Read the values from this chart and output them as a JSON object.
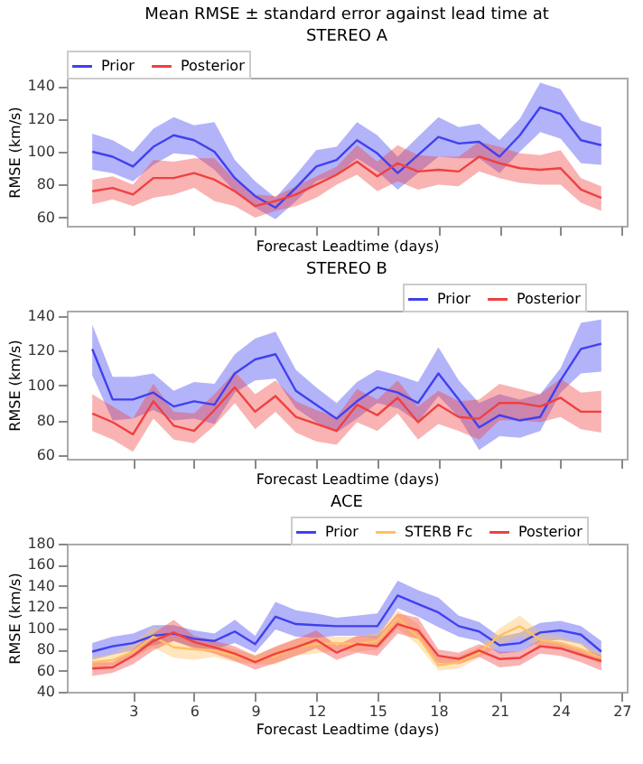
{
  "chart_data": [
    {
      "type": "line",
      "title": "Mean RMSE ± standard error against lead time at",
      "subtitle": "STEREO A",
      "xlabel": "Forecast Leadtime (days)",
      "ylabel": "RMSE (km/s)",
      "x": [
        1,
        2,
        3,
        4,
        5,
        6,
        7,
        8,
        9,
        10,
        11,
        12,
        13,
        14,
        15,
        16,
        17,
        18,
        19,
        20,
        21,
        22,
        23,
        24,
        25,
        26
      ],
      "xlim": [
        -0.25,
        27.25
      ],
      "xticks": [
        3,
        6,
        9,
        12,
        15,
        18,
        21,
        24,
        27
      ],
      "ylim": [
        55,
        145
      ],
      "yticks": [
        60,
        80,
        100,
        120,
        140
      ],
      "tick_labels": "y",
      "grid": false,
      "legend": "top left",
      "series": [
        {
          "name": "Prior",
          "color": "#4040f0",
          "values": [
            100,
            97,
            91,
            103,
            110,
            107,
            100,
            84,
            73,
            66,
            78,
            91,
            95,
            107,
            99,
            87,
            98,
            109,
            105,
            106,
            97,
            110,
            127,
            123,
            107,
            104
          ],
          "upper": [
            111,
            107,
            100,
            114,
            121,
            116,
            118,
            95,
            82,
            72,
            86,
            101,
            103,
            118,
            110,
            97,
            109,
            121,
            115,
            117,
            107,
            120,
            142,
            138,
            119,
            115
          ],
          "lower": [
            89,
            87,
            82,
            92,
            99,
            98,
            89,
            76,
            66,
            59,
            70,
            82,
            86,
            96,
            88,
            77,
            87,
            97,
            96,
            96,
            87,
            100,
            112,
            108,
            93,
            92
          ]
        },
        {
          "name": "Posterior",
          "color": "#f04040",
          "values": [
            76,
            78,
            74,
            84,
            84,
            87,
            83,
            76,
            67,
            70,
            74,
            80,
            86,
            94,
            85,
            93,
            88,
            89,
            88,
            97,
            93,
            90,
            89,
            90,
            77,
            72
          ],
          "upper": [
            83,
            85,
            80,
            95,
            94,
            96,
            96,
            83,
            74,
            73,
            79,
            85,
            91,
            104,
            94,
            104,
            98,
            97,
            97,
            106,
            103,
            99,
            98,
            101,
            84,
            79
          ],
          "lower": [
            68,
            71,
            67,
            72,
            74,
            78,
            70,
            67,
            60,
            64,
            67,
            72,
            80,
            86,
            76,
            82,
            77,
            80,
            79,
            88,
            84,
            81,
            80,
            80,
            69,
            64
          ]
        }
      ]
    },
    {
      "type": "line",
      "title": "STEREO B",
      "xlabel": "Forecast Leadtime (days)",
      "ylabel": "RMSE (km/s)",
      "x": [
        1,
        2,
        3,
        4,
        5,
        6,
        7,
        8,
        9,
        10,
        11,
        12,
        13,
        14,
        15,
        16,
        17,
        18,
        19,
        20,
        21,
        22,
        23,
        24,
        25,
        26
      ],
      "xlim": [
        -0.25,
        27.25
      ],
      "xticks": [
        3,
        6,
        9,
        12,
        15,
        18,
        21,
        24,
        27
      ],
      "ylim": [
        58,
        143
      ],
      "yticks": [
        60,
        80,
        100,
        120,
        140
      ],
      "tick_labels": "y",
      "grid": false,
      "legend": "top right",
      "series": [
        {
          "name": "Prior",
          "color": "#4040f0",
          "values": [
            121,
            92,
            92,
            96,
            88,
            91,
            89,
            107,
            115,
            118,
            97,
            89,
            81,
            91,
            99,
            96,
            90,
            107,
            92,
            76,
            83,
            80,
            82,
            103,
            121,
            124
          ],
          "upper": [
            135,
            105,
            105,
            107,
            97,
            102,
            101,
            118,
            127,
            131,
            109,
            99,
            90,
            102,
            109,
            106,
            102,
            122,
            103,
            90,
            95,
            92,
            95,
            110,
            136,
            138
          ],
          "lower": [
            106,
            80,
            81,
            86,
            80,
            81,
            78,
            96,
            103,
            104,
            87,
            79,
            73,
            81,
            90,
            87,
            79,
            94,
            82,
            63,
            71,
            70,
            74,
            96,
            107,
            108
          ]
        },
        {
          "name": "Posterior",
          "color": "#f04040",
          "values": [
            84,
            79,
            72,
            91,
            77,
            74,
            86,
            99,
            85,
            94,
            82,
            78,
            74,
            89,
            83,
            93,
            79,
            89,
            82,
            81,
            90,
            90,
            88,
            93,
            85,
            85
          ],
          "upper": [
            95,
            88,
            81,
            101,
            85,
            84,
            95,
            108,
            95,
            103,
            91,
            86,
            82,
            98,
            92,
            103,
            88,
            97,
            91,
            92,
            101,
            98,
            95,
            104,
            96,
            97
          ],
          "lower": [
            74,
            69,
            62,
            81,
            69,
            67,
            77,
            90,
            75,
            85,
            73,
            68,
            66,
            79,
            74,
            84,
            69,
            78,
            74,
            69,
            80,
            80,
            79,
            82,
            75,
            73
          ]
        }
      ]
    },
    {
      "type": "line",
      "title": "ACE",
      "xlabel": "Forecast Leadtime (days)",
      "ylabel": "RMSE (km/s)",
      "x": [
        1,
        2,
        3,
        4,
        5,
        6,
        7,
        8,
        9,
        10,
        11,
        12,
        13,
        14,
        15,
        16,
        17,
        18,
        19,
        20,
        21,
        22,
        23,
        24,
        25,
        26
      ],
      "xlim": [
        -0.25,
        27.25
      ],
      "xticks": [
        3,
        6,
        9,
        12,
        15,
        18,
        21,
        24,
        27
      ],
      "ylim": [
        40,
        180
      ],
      "yticks": [
        40,
        60,
        80,
        100,
        120,
        140,
        160,
        180
      ],
      "grid": false,
      "legend": "top right",
      "series": [
        {
          "name": "Prior",
          "color": "#4040f0",
          "values": [
            78,
            83,
            86,
            93,
            95,
            90,
            88,
            97,
            85,
            111,
            104,
            103,
            102,
            102,
            102,
            131,
            123,
            115,
            102,
            97,
            84,
            86,
            96,
            98,
            94,
            78
          ],
          "upper": [
            86,
            92,
            95,
            103,
            103,
            98,
            95,
            108,
            93,
            125,
            117,
            114,
            110,
            112,
            114,
            145,
            136,
            129,
            112,
            106,
            92,
            96,
            105,
            107,
            102,
            88
          ],
          "lower": [
            70,
            75,
            79,
            84,
            88,
            82,
            80,
            86,
            77,
            99,
            92,
            91,
            93,
            93,
            91,
            119,
            111,
            101,
            92,
            88,
            76,
            78,
            88,
            89,
            85,
            69
          ]
        },
        {
          "name": "STERB Fc",
          "color": "#ffc060",
          "values": [
            68,
            70,
            78,
            92,
            82,
            80,
            79,
            74,
            70,
            74,
            82,
            85,
            86,
            85,
            88,
            110,
            92,
            65,
            68,
            77,
            93,
            102,
            89,
            86,
            80,
            72
          ],
          "upper": [
            73,
            76,
            86,
            102,
            92,
            89,
            85,
            80,
            75,
            82,
            90,
            92,
            92,
            92,
            96,
            117,
            104,
            72,
            74,
            82,
            100,
            112,
            97,
            92,
            86,
            77
          ],
          "lower": [
            62,
            65,
            72,
            82,
            72,
            70,
            73,
            68,
            66,
            66,
            74,
            76,
            79,
            78,
            80,
            100,
            84,
            60,
            62,
            72,
            84,
            92,
            82,
            80,
            74,
            66
          ]
        },
        {
          "name": "Posterior",
          "color": "#f04040",
          "values": [
            62,
            63,
            74,
            88,
            96,
            87,
            82,
            76,
            68,
            76,
            82,
            89,
            77,
            85,
            83,
            104,
            98,
            74,
            71,
            79,
            71,
            72,
            83,
            81,
            75,
            69
          ],
          "upper": [
            68,
            68,
            80,
            95,
            108,
            93,
            88,
            83,
            74,
            83,
            90,
            98,
            84,
            93,
            92,
            114,
            110,
            80,
            77,
            85,
            78,
            78,
            89,
            87,
            81,
            74
          ],
          "lower": [
            55,
            58,
            66,
            79,
            88,
            81,
            76,
            69,
            61,
            67,
            74,
            81,
            70,
            77,
            74,
            95,
            90,
            67,
            66,
            73,
            63,
            65,
            76,
            74,
            68,
            60
          ]
        }
      ]
    }
  ]
}
